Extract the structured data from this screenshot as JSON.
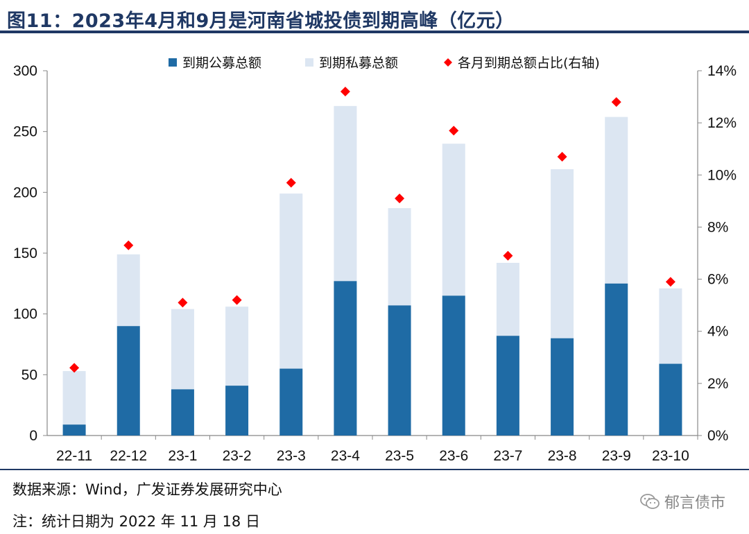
{
  "title": "图11：2023年4月和9月是河南省城投债到期高峰（亿元）",
  "source": "数据来源：Wind，广发证券发展研究中心",
  "note": "注：统计日期为 2022 年 11 月 18 日",
  "watermark": "郁言债市",
  "colors": {
    "public": "#1f6ba5",
    "private": "#dce6f2",
    "ratio": "#ff0000",
    "title": "#1f3864"
  },
  "chart_data": {
    "type": "bar",
    "stacked": true,
    "categories": [
      "22-11",
      "22-12",
      "23-1",
      "23-2",
      "23-3",
      "23-4",
      "23-5",
      "23-6",
      "23-7",
      "23-8",
      "23-9",
      "23-10"
    ],
    "series": [
      {
        "name": "到期公募总额",
        "values": [
          9,
          90,
          38,
          41,
          55,
          127,
          107,
          115,
          82,
          80,
          125,
          59
        ]
      },
      {
        "name": "到期私募总额",
        "values": [
          44,
          59,
          66,
          65,
          144,
          144,
          80,
          125,
          60,
          139,
          137,
          62
        ]
      }
    ],
    "secondary_series": {
      "name": "各月到期总额占比(右轴)",
      "type": "scatter",
      "values": [
        2.6,
        7.3,
        5.1,
        5.2,
        9.7,
        13.2,
        9.1,
        11.7,
        6.9,
        10.7,
        12.8,
        5.9
      ]
    },
    "ylim": [
      0,
      300
    ],
    "yticks": [
      "0",
      "50",
      "100",
      "150",
      "200",
      "250",
      "300"
    ],
    "y2lim": [
      0,
      14
    ],
    "y2ticks": [
      "0%",
      "2%",
      "4%",
      "6%",
      "8%",
      "10%",
      "12%",
      "14%"
    ],
    "legend_position": "top"
  }
}
